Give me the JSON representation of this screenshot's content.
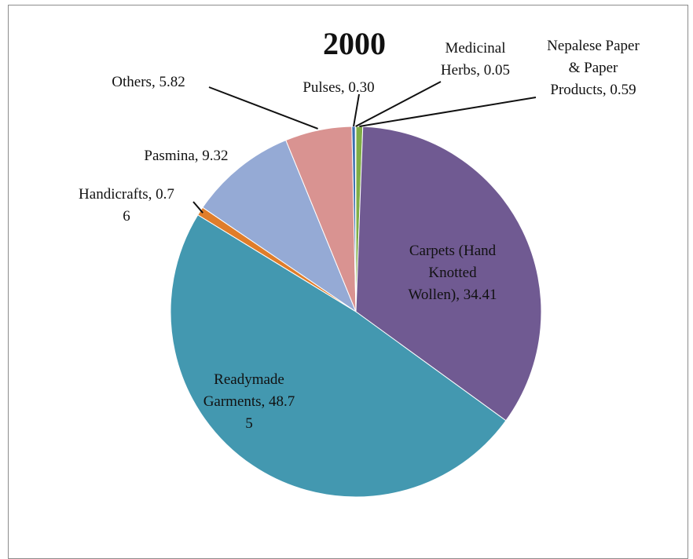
{
  "chart_data": {
    "type": "pie",
    "title": "2000",
    "slices": [
      {
        "name": "Nepalese Paper & Paper Products",
        "value": 0.59,
        "label": [
          "Nepalese Paper",
          "& Paper",
          "Products, 0.59"
        ],
        "color": "#7fad45"
      },
      {
        "name": "Carpets (Hand Knotted Wollen)",
        "value": 34.41,
        "label": [
          "Carpets (Hand",
          "Knotted",
          "Wollen), 34.41"
        ],
        "color": "#705a92"
      },
      {
        "name": "Readymade Garments",
        "value": 48.75,
        "label": [
          "Readymade",
          "Garments, 48.7",
          "5"
        ],
        "color": "#4398b0"
      },
      {
        "name": "Handicrafts",
        "value": 0.76,
        "label": [
          "Handicrafts, 0.7",
          "6"
        ],
        "color": "#e07d2a"
      },
      {
        "name": "Pasmina",
        "value": 9.32,
        "label": [
          "Pasmina, 9.32"
        ],
        "color": "#95aad5"
      },
      {
        "name": "Others",
        "value": 5.82,
        "label": [
          "Others, 5.82"
        ],
        "color": "#d99391"
      },
      {
        "name": "Pulses",
        "value": 0.3,
        "label": [
          "Pulses, 0.30"
        ],
        "color": "#3a6fb0"
      },
      {
        "name": "Medicinal Herbs",
        "value": 0.05,
        "label": [
          "Medicinal",
          "Herbs, 0.05"
        ],
        "color": "#4f81bd"
      }
    ]
  }
}
